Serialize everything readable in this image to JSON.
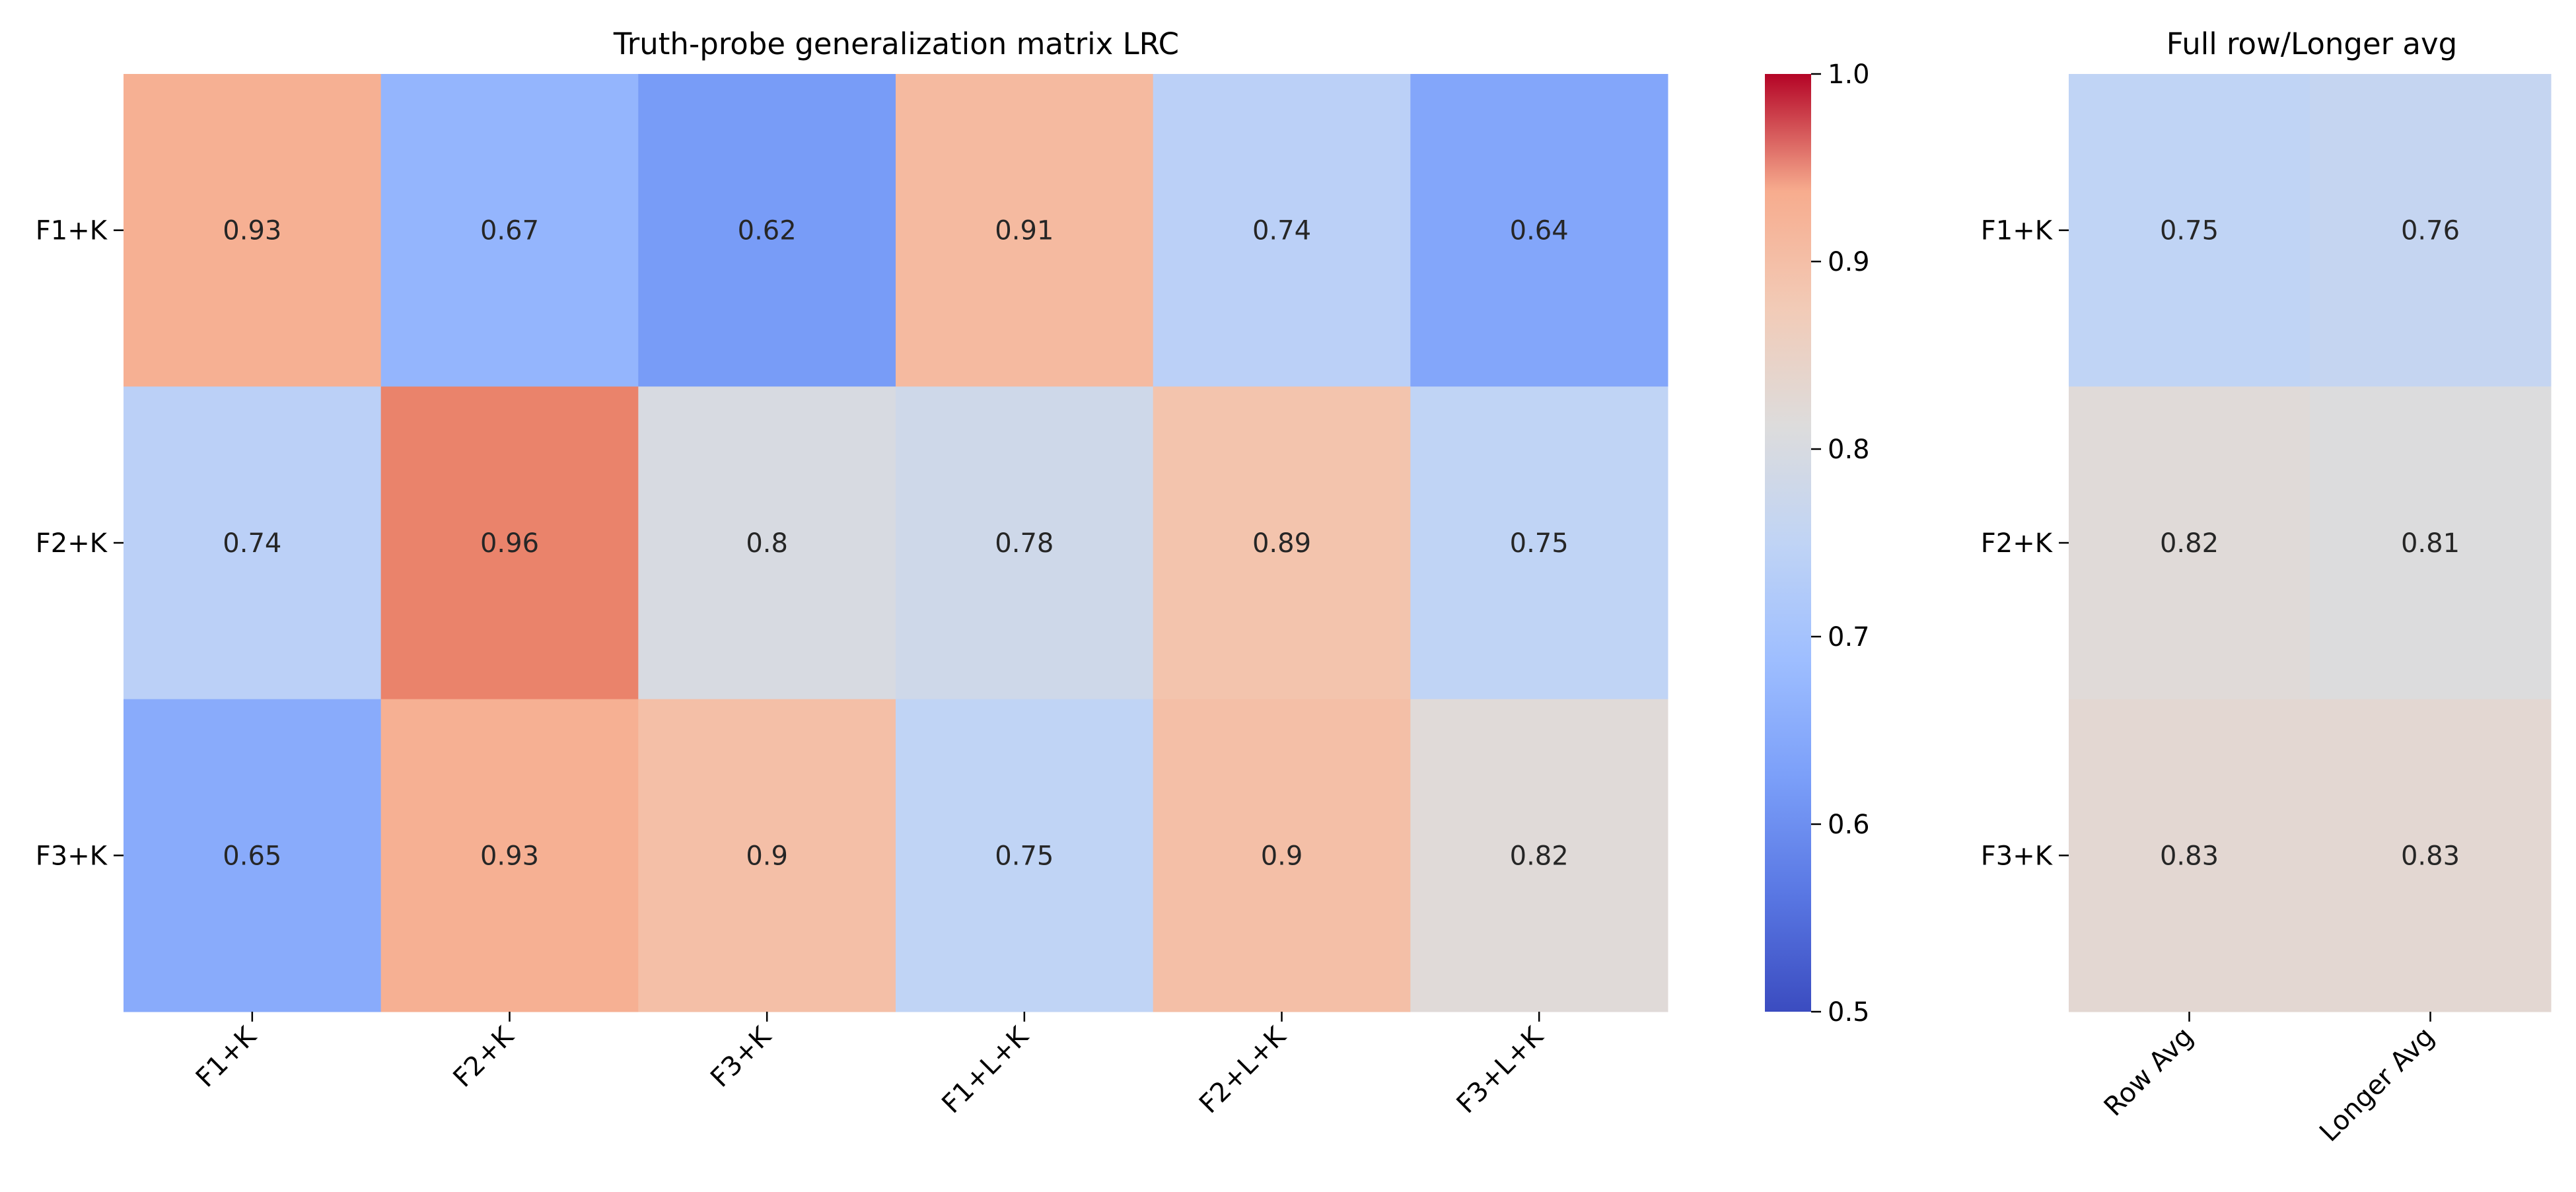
{
  "chart_data": [
    {
      "type": "heatmap",
      "title": "Truth-probe generalization matrix LRC",
      "row_labels": [
        "F1+K",
        "F2+K",
        "F3+K"
      ],
      "col_labels": [
        "F1+K",
        "F2+K",
        "F3+K",
        "F1+L+K",
        "F2+L+K",
        "F3+L+K"
      ],
      "values": [
        [
          0.93,
          0.67,
          0.62,
          0.91,
          0.74,
          0.64
        ],
        [
          0.74,
          0.96,
          0.8,
          0.78,
          0.89,
          0.75
        ],
        [
          0.65,
          0.93,
          0.9,
          0.75,
          0.9,
          0.82
        ]
      ],
      "colormap": "coolwarm",
      "vmin": 0.5,
      "vmax": 1.0,
      "colorbar_ticks": [
        "0.5",
        "0.6",
        "0.7",
        "0.8",
        "0.9",
        "1.0"
      ]
    },
    {
      "type": "heatmap",
      "title": "Full row/Longer avg",
      "row_labels": [
        "F1+K",
        "F2+K",
        "F3+K"
      ],
      "col_labels": [
        "Row Avg",
        "Longer Avg"
      ],
      "values": [
        [
          0.75,
          0.76
        ],
        [
          0.82,
          0.81
        ],
        [
          0.83,
          0.83
        ]
      ],
      "colormap": "coolwarm",
      "vmin": 0.5,
      "vmax": 1.0
    }
  ]
}
